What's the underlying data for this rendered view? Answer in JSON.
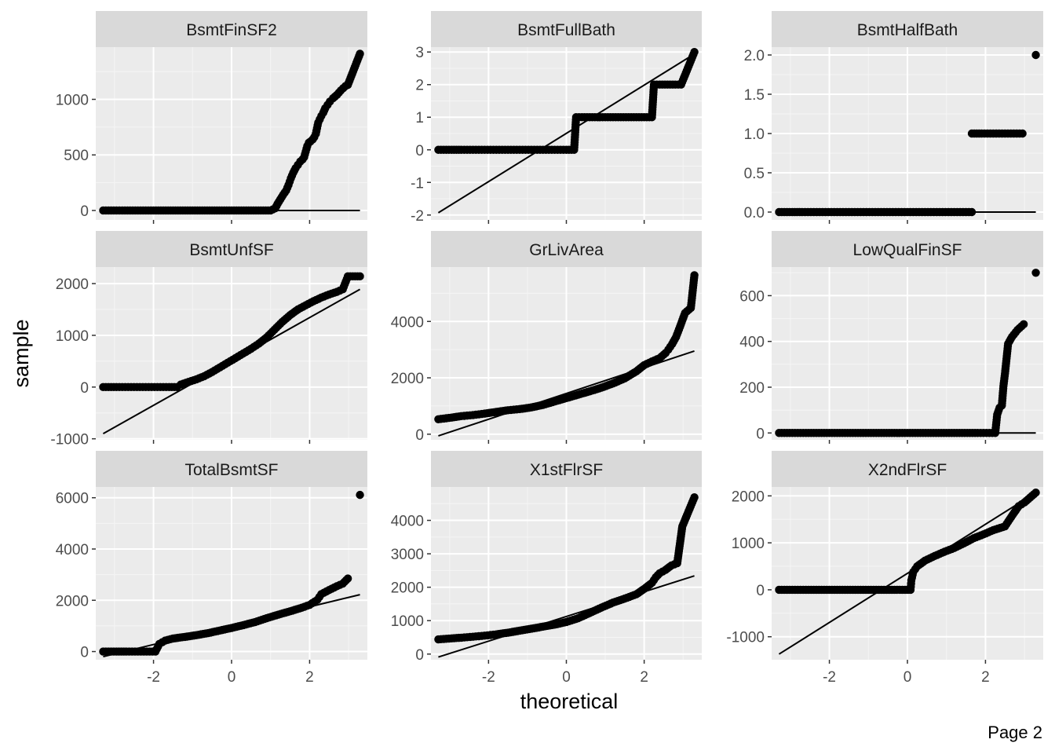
{
  "page_label": "Page 2",
  "chart_data": {
    "type": "scatter",
    "kind": "faceted normal Q-Q plot",
    "xlabel": "theoretical",
    "ylabel": "sample",
    "facet_rows": 3,
    "facet_cols": 3,
    "shared_x": true,
    "free_y": true,
    "xlim": [
      -3.48,
      3.48
    ],
    "x_ticks": [
      -2,
      0,
      2
    ],
    "grid": true,
    "panel_background": "#ebebeb",
    "strip_background": "#d9d9d9",
    "point_color": "#000000",
    "line_color": "#000000",
    "panels": [
      {
        "title": "BsmtFinSF2",
        "ylim": [
          -85,
          1470
        ],
        "y_ticks": [
          0,
          500,
          1000
        ],
        "line": {
          "x": [
            -3.29,
            3.29
          ],
          "y": [
            0,
            0
          ]
        },
        "points": [
          [
            -3.29,
            0
          ],
          [
            -2.95,
            0
          ],
          [
            -2.8,
            0
          ],
          [
            -2.6,
            0
          ],
          [
            -2.4,
            0
          ],
          [
            -2.2,
            0
          ],
          [
            -2.0,
            0
          ],
          [
            -1.5,
            0
          ],
          [
            -1.0,
            0
          ],
          [
            -0.5,
            0
          ],
          [
            0,
            0
          ],
          [
            0.5,
            0
          ],
          [
            1.0,
            0
          ],
          [
            1.12,
            20
          ],
          [
            1.18,
            60
          ],
          [
            1.25,
            100
          ],
          [
            1.32,
            140
          ],
          [
            1.4,
            180
          ],
          [
            1.46,
            230
          ],
          [
            1.52,
            290
          ],
          [
            1.58,
            340
          ],
          [
            1.64,
            380
          ],
          [
            1.7,
            410
          ],
          [
            1.76,
            440
          ],
          [
            1.82,
            460
          ],
          [
            1.86,
            480
          ],
          [
            1.9,
            530
          ],
          [
            1.94,
            580
          ],
          [
            1.98,
            610
          ],
          [
            2.02,
            620
          ],
          [
            2.08,
            640
          ],
          [
            2.12,
            660
          ],
          [
            2.16,
            690
          ],
          [
            2.22,
            790
          ],
          [
            2.26,
            820
          ],
          [
            2.3,
            850
          ],
          [
            2.35,
            880
          ],
          [
            2.4,
            920
          ],
          [
            2.46,
            950
          ],
          [
            2.52,
            980
          ],
          [
            2.6,
            1010
          ],
          [
            2.7,
            1040
          ],
          [
            2.8,
            1080
          ],
          [
            2.92,
            1120
          ],
          [
            2.98,
            1130
          ],
          [
            3.29,
            1410
          ]
        ]
      },
      {
        "title": "BsmtFullBath",
        "ylim": [
          -2.15,
          3.15
        ],
        "y_ticks": [
          -2,
          -1,
          0,
          1,
          2,
          3
        ],
        "line": {
          "x": [
            -3.29,
            3.29
          ],
          "y": [
            -1.93,
            2.94
          ]
        },
        "points": [
          [
            -3.29,
            0
          ],
          [
            -2.95,
            0
          ],
          [
            -2.7,
            0
          ],
          [
            -2.4,
            0
          ],
          [
            -2.1,
            0
          ],
          [
            -1.8,
            0
          ],
          [
            -1.5,
            0
          ],
          [
            -1.2,
            0
          ],
          [
            -0.9,
            0
          ],
          [
            -0.6,
            0
          ],
          [
            -0.3,
            0
          ],
          [
            0,
            0
          ],
          [
            0.2,
            0
          ],
          [
            0.25,
            1
          ],
          [
            0.4,
            1
          ],
          [
            0.6,
            1
          ],
          [
            0.8,
            1
          ],
          [
            1.0,
            1
          ],
          [
            1.2,
            1
          ],
          [
            1.4,
            1
          ],
          [
            1.6,
            1
          ],
          [
            1.8,
            1
          ],
          [
            2.0,
            1
          ],
          [
            2.2,
            1
          ],
          [
            2.25,
            2
          ],
          [
            2.4,
            2
          ],
          [
            2.6,
            2
          ],
          [
            2.8,
            2
          ],
          [
            2.95,
            2
          ],
          [
            3.29,
            3
          ]
        ]
      },
      {
        "title": "BsmtHalfBath",
        "ylim": [
          -0.1,
          2.1
        ],
        "y_ticks": [
          0.0,
          0.5,
          1.0,
          1.5,
          2.0
        ],
        "tick_labels": [
          "0.0",
          "0.5",
          "1.0",
          "1.5",
          "2.0"
        ],
        "line": {
          "x": [
            -3.29,
            3.29
          ],
          "y": [
            0,
            0
          ]
        },
        "points": [
          [
            -3.29,
            0
          ],
          [
            -2.95,
            0
          ],
          [
            -2.7,
            0
          ],
          [
            -2.4,
            0
          ],
          [
            -2.1,
            0
          ],
          [
            -1.8,
            0
          ],
          [
            -1.5,
            0
          ],
          [
            -1.2,
            0
          ],
          [
            -0.9,
            0
          ],
          [
            -0.6,
            0
          ],
          [
            -0.3,
            0
          ],
          [
            0,
            0
          ],
          [
            0.3,
            0
          ],
          [
            0.6,
            0
          ],
          [
            0.9,
            0
          ],
          [
            1.2,
            0
          ],
          [
            1.5,
            0
          ],
          [
            1.65,
            0
          ],
          [
            1.65,
            1
          ],
          [
            1.9,
            1
          ],
          [
            2.2,
            1
          ],
          [
            2.5,
            1
          ],
          [
            2.8,
            1
          ],
          [
            2.95,
            1
          ],
          [
            3.29,
            2
          ]
        ]
      },
      {
        "title": "BsmtUnfSF",
        "ylim": [
          -1020,
          2320
        ],
        "y_ticks": [
          -1000,
          0,
          1000,
          2000
        ],
        "line": {
          "x": [
            -3.29,
            3.29
          ],
          "y": [
            -900,
            1890
          ]
        },
        "points": [
          [
            -3.29,
            0
          ],
          [
            -2.95,
            0
          ],
          [
            -2.8,
            0
          ],
          [
            -2.5,
            0
          ],
          [
            -2.2,
            0
          ],
          [
            -1.9,
            0
          ],
          [
            -1.6,
            0
          ],
          [
            -1.4,
            0
          ],
          [
            -1.3,
            50
          ],
          [
            -1.1,
            100
          ],
          [
            -0.9,
            150
          ],
          [
            -0.7,
            210
          ],
          [
            -0.5,
            290
          ],
          [
            -0.3,
            380
          ],
          [
            -0.1,
            470
          ],
          [
            0.1,
            560
          ],
          [
            0.3,
            650
          ],
          [
            0.5,
            740
          ],
          [
            0.7,
            840
          ],
          [
            0.9,
            960
          ],
          [
            1.1,
            1110
          ],
          [
            1.3,
            1260
          ],
          [
            1.5,
            1390
          ],
          [
            1.7,
            1500
          ],
          [
            1.9,
            1580
          ],
          [
            2.1,
            1660
          ],
          [
            2.3,
            1730
          ],
          [
            2.5,
            1790
          ],
          [
            2.7,
            1840
          ],
          [
            2.85,
            1890
          ],
          [
            2.98,
            2140
          ],
          [
            3.29,
            2140
          ]
        ]
      },
      {
        "title": "GrLivArea",
        "ylim": [
          -200,
          5930
        ],
        "y_ticks": [
          0,
          2000,
          4000
        ],
        "line": {
          "x": [
            -3.29,
            3.29
          ],
          "y": [
            -60,
            2950
          ]
        },
        "points": [
          [
            -3.29,
            530
          ],
          [
            -2.95,
            590
          ],
          [
            -2.7,
            640
          ],
          [
            -2.4,
            680
          ],
          [
            -2.1,
            730
          ],
          [
            -1.8,
            790
          ],
          [
            -1.5,
            850
          ],
          [
            -1.2,
            890
          ],
          [
            -0.9,
            950
          ],
          [
            -0.6,
            1040
          ],
          [
            -0.3,
            1160
          ],
          [
            0,
            1280
          ],
          [
            0.3,
            1400
          ],
          [
            0.6,
            1520
          ],
          [
            0.9,
            1650
          ],
          [
            1.2,
            1800
          ],
          [
            1.5,
            1980
          ],
          [
            1.8,
            2230
          ],
          [
            2.0,
            2450
          ],
          [
            2.2,
            2580
          ],
          [
            2.4,
            2700
          ],
          [
            2.55,
            2880
          ],
          [
            2.62,
            3000
          ],
          [
            2.72,
            3200
          ],
          [
            2.82,
            3450
          ],
          [
            2.92,
            3810
          ],
          [
            3.05,
            4300
          ],
          [
            3.2,
            4480
          ],
          [
            3.29,
            5640
          ]
        ]
      },
      {
        "title": "LowQualFinSF",
        "ylim": [
          -30,
          725
        ],
        "y_ticks": [
          0,
          200,
          400,
          600
        ],
        "line": {
          "x": [
            -3.29,
            3.29
          ],
          "y": [
            0,
            0
          ]
        },
        "points": [
          [
            -3.29,
            0
          ],
          [
            -2.95,
            0
          ],
          [
            -2.6,
            0
          ],
          [
            -2.2,
            0
          ],
          [
            -1.8,
            0
          ],
          [
            -1.4,
            0
          ],
          [
            -1.0,
            0
          ],
          [
            -0.6,
            0
          ],
          [
            -0.2,
            0
          ],
          [
            0.2,
            0
          ],
          [
            0.6,
            0
          ],
          [
            1.0,
            0
          ],
          [
            1.4,
            0
          ],
          [
            1.8,
            0
          ],
          [
            2.1,
            0
          ],
          [
            2.25,
            0
          ],
          [
            2.3,
            80
          ],
          [
            2.36,
            110
          ],
          [
            2.42,
            120
          ],
          [
            2.46,
            205
          ],
          [
            2.5,
            260
          ],
          [
            2.58,
            390
          ],
          [
            2.68,
            420
          ],
          [
            2.82,
            450
          ],
          [
            2.98,
            475
          ],
          [
            3.29,
            700
          ]
        ]
      },
      {
        "title": "TotalBsmtSF",
        "ylim": [
          -320,
          6420
        ],
        "y_ticks": [
          0,
          2000,
          4000,
          6000
        ],
        "line": {
          "x": [
            -3.29,
            3.29
          ],
          "y": [
            -200,
            2220
          ]
        },
        "points": [
          [
            -3.29,
            0
          ],
          [
            -2.95,
            0
          ],
          [
            -2.7,
            0
          ],
          [
            -2.4,
            0
          ],
          [
            -2.1,
            0
          ],
          [
            -1.95,
            0
          ],
          [
            -1.85,
            300
          ],
          [
            -1.7,
            430
          ],
          [
            -1.5,
            510
          ],
          [
            -1.2,
            570
          ],
          [
            -0.9,
            640
          ],
          [
            -0.6,
            720
          ],
          [
            -0.3,
            820
          ],
          [
            0,
            920
          ],
          [
            0.3,
            1030
          ],
          [
            0.6,
            1150
          ],
          [
            0.9,
            1300
          ],
          [
            1.2,
            1440
          ],
          [
            1.5,
            1570
          ],
          [
            1.8,
            1710
          ],
          [
            2.0,
            1820
          ],
          [
            2.2,
            2020
          ],
          [
            2.3,
            2240
          ],
          [
            2.5,
            2400
          ],
          [
            2.7,
            2550
          ],
          [
            2.85,
            2650
          ],
          [
            2.98,
            2850
          ],
          [
            3.29,
            6110
          ]
        ]
      },
      {
        "title": "X1stFlrSF",
        "ylim": [
          -170,
          5000
        ],
        "y_ticks": [
          0,
          1000,
          2000,
          3000,
          4000
        ],
        "line": {
          "x": [
            -3.29,
            3.29
          ],
          "y": [
            -90,
            2340
          ]
        },
        "points": [
          [
            -3.29,
            440
          ],
          [
            -2.95,
            470
          ],
          [
            -2.7,
            490
          ],
          [
            -2.4,
            520
          ],
          [
            -2.1,
            550
          ],
          [
            -1.8,
            590
          ],
          [
            -1.5,
            640
          ],
          [
            -1.2,
            700
          ],
          [
            -0.9,
            760
          ],
          [
            -0.6,
            820
          ],
          [
            -0.3,
            880
          ],
          [
            0,
            960
          ],
          [
            0.3,
            1070
          ],
          [
            0.6,
            1230
          ],
          [
            0.9,
            1390
          ],
          [
            1.2,
            1540
          ],
          [
            1.5,
            1660
          ],
          [
            1.8,
            1790
          ],
          [
            2.0,
            1950
          ],
          [
            2.2,
            2130
          ],
          [
            2.3,
            2300
          ],
          [
            2.4,
            2420
          ],
          [
            2.55,
            2520
          ],
          [
            2.7,
            2650
          ],
          [
            2.85,
            2720
          ],
          [
            2.98,
            3820
          ],
          [
            3.29,
            4690
          ]
        ]
      },
      {
        "title": "X2ndFlrSF",
        "ylim": [
          -1490,
          2190
        ],
        "y_ticks": [
          -1000,
          0,
          1000,
          2000
        ],
        "line": {
          "x": [
            -3.29,
            3.29
          ],
          "y": [
            -1370,
            2070
          ]
        },
        "points": [
          [
            -3.29,
            0
          ],
          [
            -2.95,
            0
          ],
          [
            -2.6,
            0
          ],
          [
            -2.2,
            0
          ],
          [
            -1.8,
            0
          ],
          [
            -1.4,
            0
          ],
          [
            -1.0,
            0
          ],
          [
            -0.6,
            0
          ],
          [
            -0.2,
            0
          ],
          [
            0.08,
            0
          ],
          [
            0.1,
            200
          ],
          [
            0.15,
            380
          ],
          [
            0.25,
            500
          ],
          [
            0.45,
            620
          ],
          [
            0.7,
            720
          ],
          [
            0.95,
            810
          ],
          [
            1.2,
            890
          ],
          [
            1.45,
            990
          ],
          [
            1.7,
            1100
          ],
          [
            1.95,
            1180
          ],
          [
            2.2,
            1270
          ],
          [
            2.5,
            1350
          ],
          [
            2.7,
            1600
          ],
          [
            2.85,
            1780
          ],
          [
            3.0,
            1860
          ],
          [
            3.29,
            2070
          ]
        ]
      }
    ]
  }
}
